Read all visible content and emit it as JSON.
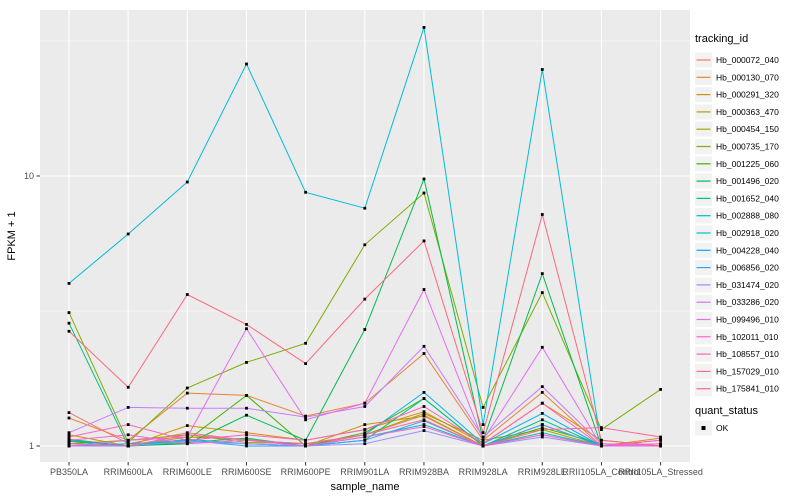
{
  "chart_data": {
    "type": "line",
    "title": "",
    "xlabel": "sample_name",
    "ylabel": "FPKM + 1",
    "y_scale": "log10",
    "ylim": [
      0.93,
      41
    ],
    "grid": "on",
    "panel_bg": "#EBEBEB",
    "gridline_color": "#FFFFFF",
    "point_color": "#000000",
    "point_shape": "square",
    "y_ticks": [
      {
        "v": 1,
        "label": "1"
      },
      {
        "v": 10,
        "label": "10"
      }
    ],
    "y_minor": [
      3.162,
      31.62
    ],
    "categories": [
      "PB350LA",
      "RRIM600LA",
      "RRIM600LE",
      "RRIM600SE",
      "RRIM600PE",
      "RRIM901LA",
      "RRIM928BA",
      "RRIM928LA",
      "RRIM928LE",
      "RRII105LA_Control",
      "RRII105LA_Stressed"
    ],
    "legend": {
      "color_title": "tracking_id",
      "shape_title": "quant_status",
      "shape_items": [
        {
          "label": "OK"
        }
      ],
      "key_bg": "#F2F2F2",
      "position": "right"
    },
    "series": [
      {
        "name": "Hb_000072_040",
        "color": "#F8766D",
        "values": [
          1.33,
          1.02,
          1.12,
          1.05,
          1.0,
          1.1,
          1.3,
          1.0,
          1.2,
          1.0,
          1.0
        ]
      },
      {
        "name": "Hb_000130_070",
        "color": "#EA8331",
        "values": [
          1.27,
          1.05,
          1.57,
          1.54,
          1.29,
          1.44,
          2.2,
          1.05,
          1.58,
          1.0,
          1.07
        ]
      },
      {
        "name": "Hb_000291_320",
        "color": "#D89000",
        "values": [
          1.05,
          1.0,
          1.19,
          1.12,
          1.05,
          1.15,
          1.34,
          1.02,
          1.44,
          1.05,
          1.0
        ]
      },
      {
        "name": "Hb_000363_470",
        "color": "#C09B00",
        "values": [
          1.1,
          1.0,
          1.08,
          1.06,
          1.0,
          1.2,
          1.29,
          1.0,
          1.1,
          1.0,
          1.02
        ]
      },
      {
        "name": "Hb_000454_150",
        "color": "#A3A500",
        "values": [
          1.02,
          1.05,
          1.1,
          1.03,
          1.02,
          1.1,
          1.32,
          1.05,
          1.15,
          1.0,
          1.0
        ]
      },
      {
        "name": "Hb_000735_170",
        "color": "#7CAE00",
        "values": [
          3.12,
          1.03,
          1.64,
          2.04,
          2.4,
          5.56,
          8.65,
          1.39,
          3.7,
          1.15,
          1.62
        ]
      },
      {
        "name": "Hb_001225_060",
        "color": "#39B600",
        "values": [
          1.06,
          1.0,
          1.05,
          1.54,
          1.0,
          1.12,
          1.5,
          1.0,
          1.17,
          1.02,
          1.0
        ]
      },
      {
        "name": "Hb_001496_020",
        "color": "#00BB4E",
        "values": [
          1.04,
          1.0,
          1.02,
          1.3,
          1.05,
          2.7,
          9.75,
          1.05,
          4.35,
          1.0,
          1.0
        ]
      },
      {
        "name": "Hb_001652_040",
        "color": "#00C087",
        "values": [
          2.85,
          1.0,
          1.03,
          1.07,
          1.0,
          1.05,
          1.5,
          1.0,
          1.25,
          1.0,
          1.0
        ]
      },
      {
        "name": "Hb_002888_080",
        "color": "#00C0B2",
        "values": [
          1.02,
          1.0,
          1.06,
          1.02,
          1.0,
          1.08,
          1.2,
          1.0,
          1.12,
          1.0,
          1.0
        ]
      },
      {
        "name": "Hb_002918_020",
        "color": "#00BCD8",
        "values": [
          4.0,
          6.1,
          9.5,
          26.0,
          8.7,
          7.6,
          35.5,
          1.2,
          24.8,
          1.0,
          1.05
        ]
      },
      {
        "name": "Hb_004228_040",
        "color": "#00B0F6",
        "values": [
          1.05,
          1.0,
          1.1,
          1.05,
          1.02,
          1.1,
          1.58,
          1.02,
          1.32,
          1.0,
          1.0
        ]
      },
      {
        "name": "Hb_006856_020",
        "color": "#35A2FF",
        "values": [
          1.0,
          1.02,
          1.05,
          1.0,
          1.0,
          1.05,
          1.24,
          1.0,
          1.2,
          1.0,
          1.0
        ]
      },
      {
        "name": "Hb_031474_020",
        "color": "#9590FF",
        "values": [
          1.0,
          1.0,
          1.04,
          1.02,
          1.0,
          1.02,
          1.14,
          1.0,
          1.08,
          1.0,
          1.0
        ]
      },
      {
        "name": "Hb_033286_020",
        "color": "#C77CFF",
        "values": [
          1.12,
          1.39,
          1.38,
          1.38,
          1.28,
          1.4,
          2.34,
          1.08,
          1.66,
          1.02,
          1.0
        ]
      },
      {
        "name": "Hb_099496_010",
        "color": "#E76BF3",
        "values": [
          1.0,
          1.05,
          1.08,
          2.72,
          1.25,
          1.44,
          3.8,
          1.05,
          2.32,
          1.0,
          1.0
        ]
      },
      {
        "name": "Hb_102011_010",
        "color": "#FA62DB",
        "values": [
          1.05,
          1.1,
          1.02,
          1.05,
          1.0,
          1.08,
          1.18,
          1.0,
          1.1,
          1.0,
          1.02
        ]
      },
      {
        "name": "Hb_108557_010",
        "color": "#FF62BC",
        "values": [
          1.08,
          1.2,
          1.05,
          1.1,
          1.05,
          1.15,
          1.4,
          1.02,
          1.44,
          1.0,
          1.05
        ]
      },
      {
        "name": "Hb_157029_010",
        "color": "#FF6A98",
        "values": [
          1.02,
          1.0,
          1.1,
          1.05,
          1.02,
          1.1,
          1.25,
          1.0,
          1.15,
          1.17,
          1.08
        ]
      },
      {
        "name": "Hb_175841_010",
        "color": "#FC687F",
        "values": [
          2.66,
          1.65,
          3.64,
          2.82,
          2.02,
          3.5,
          5.75,
          1.12,
          7.2,
          1.05,
          1.0
        ]
      }
    ]
  }
}
